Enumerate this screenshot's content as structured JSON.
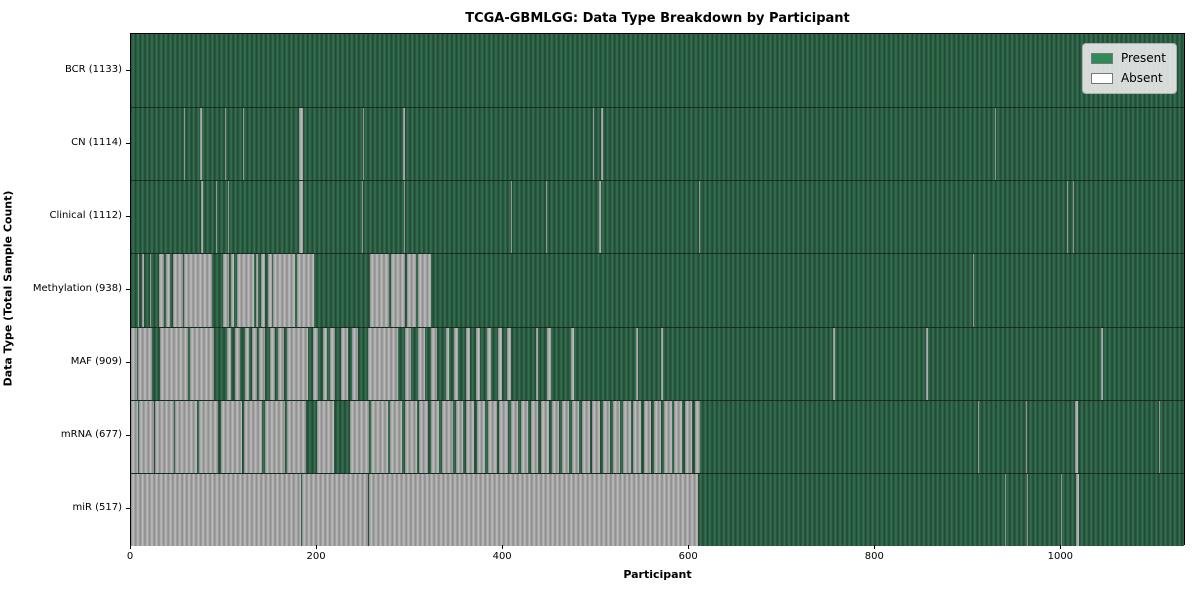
{
  "title": "TCGA-GBMLGG: Data Type Breakdown by Participant",
  "xlabel": "Participant",
  "ylabel": "Data Type (Total Sample Count)",
  "legend": {
    "present_label": "Present",
    "absent_label": "Absent",
    "present_color": "#2e8b57",
    "absent_color": "#ffffff"
  },
  "colors": {
    "present_dark": "#1e4832",
    "present_light": "#387253",
    "absent_dark": "#8a8a8a",
    "absent_light": "#bfbfbf",
    "axis": "#000000"
  },
  "chart_data": {
    "type": "heatmap",
    "x_ticks": [
      0,
      200,
      400,
      600,
      800,
      1000
    ],
    "xlim": [
      0,
      1134
    ],
    "legend_entries": [
      "Present",
      "Absent"
    ],
    "rows": [
      {
        "name": "BCR",
        "count": 1133,
        "label": "BCR (1133)",
        "absent_ranges": []
      },
      {
        "name": "CN",
        "count": 1114,
        "label": "CN (1114)",
        "absent_ranges": [
          [
            57,
            57
          ],
          [
            74,
            75
          ],
          [
            101,
            101
          ],
          [
            120,
            121
          ],
          [
            181,
            184
          ],
          [
            249,
            249
          ],
          [
            292,
            293
          ],
          [
            497,
            497
          ],
          [
            505,
            506
          ],
          [
            929,
            929
          ]
        ]
      },
      {
        "name": "Clinical",
        "count": 1112,
        "label": "Clinical (1112)",
        "absent_ranges": [
          [
            75,
            76
          ],
          [
            91,
            91
          ],
          [
            104,
            104
          ],
          [
            181,
            184
          ],
          [
            248,
            248
          ],
          [
            293,
            294
          ],
          [
            408,
            408
          ],
          [
            446,
            446
          ],
          [
            503,
            504
          ],
          [
            610,
            611
          ],
          [
            1006,
            1006
          ],
          [
            1013,
            1013
          ]
        ]
      },
      {
        "name": "Methylation",
        "count": 938,
        "label": "Methylation (938)",
        "absent_ranges": [
          [
            7,
            8
          ],
          [
            12,
            13
          ],
          [
            20,
            21
          ],
          [
            30,
            34
          ],
          [
            38,
            41
          ],
          [
            45,
            55
          ],
          [
            57,
            86
          ],
          [
            99,
            104
          ],
          [
            107,
            110
          ],
          [
            114,
            131
          ],
          [
            134,
            136
          ],
          [
            140,
            143
          ],
          [
            147,
            151
          ],
          [
            153,
            175
          ],
          [
            178,
            196
          ],
          [
            257,
            276
          ],
          [
            279,
            294
          ],
          [
            297,
            305
          ],
          [
            308,
            322
          ],
          [
            905,
            905
          ]
        ]
      },
      {
        "name": "MAF",
        "count": 909,
        "label": "MAF (909)",
        "absent_ranges": [
          [
            0,
            5
          ],
          [
            8,
            22
          ],
          [
            31,
            60
          ],
          [
            63,
            88
          ],
          [
            103,
            106
          ],
          [
            112,
            116
          ],
          [
            122,
            126
          ],
          [
            130,
            134
          ],
          [
            138,
            143
          ],
          [
            149,
            154
          ],
          [
            158,
            163
          ],
          [
            168,
            189
          ],
          [
            196,
            200
          ],
          [
            206,
            210
          ],
          [
            214,
            218
          ],
          [
            226,
            232
          ],
          [
            238,
            243
          ],
          [
            255,
            286
          ],
          [
            295,
            300
          ],
          [
            308,
            315
          ],
          [
            322,
            328
          ],
          [
            339,
            341
          ],
          [
            347,
            350
          ],
          [
            360,
            363
          ],
          [
            371,
            374
          ],
          [
            383,
            386
          ],
          [
            395,
            398
          ],
          [
            404,
            407
          ],
          [
            435,
            437
          ],
          [
            447,
            450
          ],
          [
            473,
            475
          ],
          [
            543,
            544
          ],
          [
            570,
            571
          ],
          [
            755,
            756
          ],
          [
            855,
            856
          ],
          [
            1043,
            1044
          ]
        ]
      },
      {
        "name": "mRNA",
        "count": 677,
        "label": "mRNA (677)",
        "absent_ranges": [
          [
            0,
            7
          ],
          [
            9,
            24
          ],
          [
            26,
            45
          ],
          [
            47,
            70
          ],
          [
            73,
            93
          ],
          [
            97,
            118
          ],
          [
            121,
            140
          ],
          [
            144,
            165
          ],
          [
            168,
            187
          ],
          [
            200,
            217
          ],
          [
            235,
            255
          ],
          [
            258,
            275
          ],
          [
            278,
            290
          ],
          [
            294,
            306
          ],
          [
            310,
            318
          ],
          [
            322,
            330
          ],
          [
            334,
            345
          ],
          [
            349,
            356
          ],
          [
            360,
            368
          ],
          [
            372,
            380
          ],
          [
            384,
            392
          ],
          [
            396,
            404
          ],
          [
            408,
            415
          ],
          [
            419,
            426
          ],
          [
            430,
            437
          ],
          [
            441,
            448
          ],
          [
            452,
            459
          ],
          [
            463,
            470
          ],
          [
            474,
            481
          ],
          [
            485,
            492
          ],
          [
            496,
            503
          ],
          [
            507,
            514
          ],
          [
            518,
            525
          ],
          [
            529,
            536
          ],
          [
            540,
            547
          ],
          [
            551,
            558
          ],
          [
            562,
            569
          ],
          [
            573,
            580
          ],
          [
            584,
            591
          ],
          [
            595,
            602
          ],
          [
            606,
            611
          ],
          [
            910,
            910
          ],
          [
            962,
            962
          ],
          [
            1015,
            1017
          ],
          [
            1105,
            1105
          ]
        ]
      },
      {
        "name": "miR",
        "count": 517,
        "label": "miR (517)",
        "absent_ranges": [
          [
            0,
            182
          ],
          [
            184,
            254
          ],
          [
            256,
            608
          ],
          [
            939,
            939
          ],
          [
            963,
            963
          ],
          [
            1000,
            1000
          ],
          [
            1016,
            1018
          ]
        ]
      }
    ]
  }
}
